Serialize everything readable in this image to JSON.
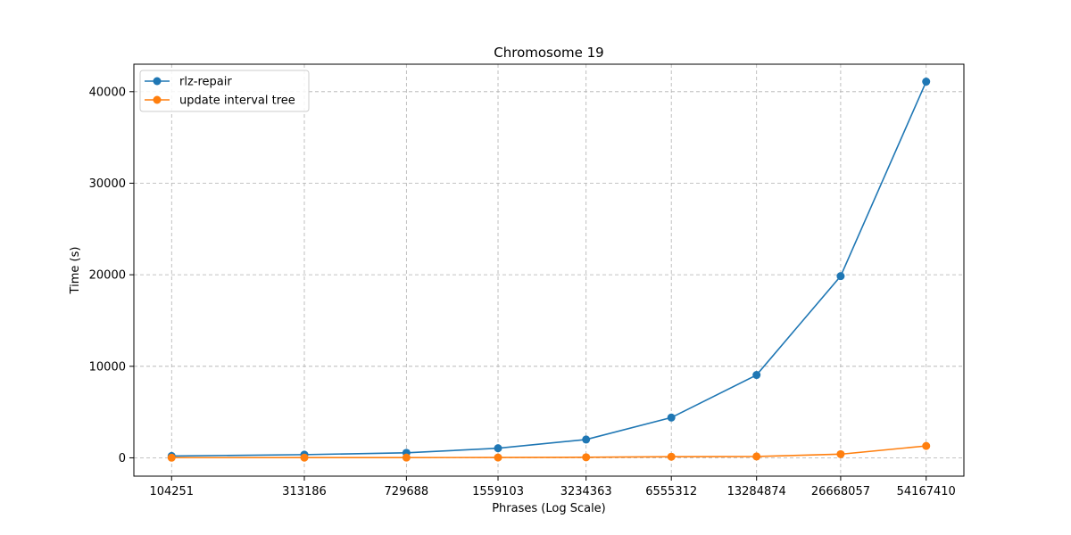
{
  "chart_data": {
    "type": "line",
    "title": "Chromosome 19",
    "xlabel": "Phrases (Log Scale)",
    "ylabel": "Time (s)",
    "x_scale": "log",
    "x": [
      104251,
      313186,
      729688,
      1559103,
      3234363,
      6555312,
      13284874,
      26668057,
      54167410
    ],
    "x_tick_labels": [
      "104251",
      "313186",
      "729688",
      "1559103",
      "3234363",
      "6555312",
      "13284874",
      "26668057",
      "54167410"
    ],
    "yticks": [
      0,
      10000,
      20000,
      30000,
      40000
    ],
    "y_tick_labels": [
      "0",
      "10000",
      "20000",
      "30000",
      "40000"
    ],
    "ylim": [
      -2000,
      43000
    ],
    "grid": true,
    "legend_position": "top-left",
    "series": [
      {
        "name": "rlz-repair",
        "color": "#1f77b4",
        "values": [
          200,
          350,
          550,
          1050,
          2000,
          4400,
          9050,
          19850,
          41100
        ]
      },
      {
        "name": "update interval tree",
        "color": "#ff7f0e",
        "values": [
          20,
          25,
          30,
          35,
          60,
          120,
          150,
          400,
          1300
        ]
      }
    ]
  }
}
